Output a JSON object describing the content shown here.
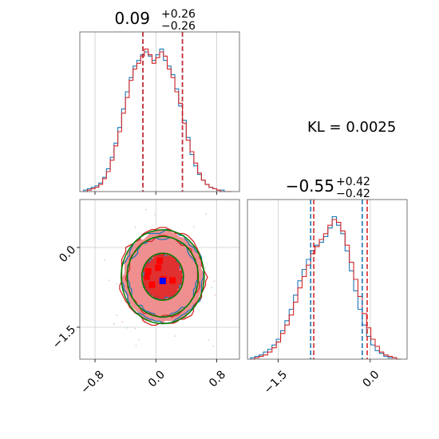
{
  "colors": {
    "blue": "#1f77b4",
    "red": "#d62728",
    "green": "#008000",
    "grid": "#cccccc",
    "spine": "#555555"
  },
  "annotation": {
    "kl_text": "KL = 0.0025"
  },
  "chart_data": [
    {
      "type": "histogram",
      "panel": "top-left",
      "title": {
        "value": "0.09",
        "plus": "+0.26",
        "minus": "−0.26"
      },
      "x_range": [
        -1.0,
        1.1
      ],
      "x_ticks": [
        -0.8,
        0.0,
        0.8
      ],
      "x_tick_labels": [
        "−0.8",
        "0.0",
        "0.8"
      ],
      "show_tick_labels": false,
      "grid": true,
      "series": [
        {
          "name": "",
          "color": "#1f77b4",
          "edges": [
            -0.95,
            -0.9,
            -0.85,
            -0.8,
            -0.75,
            -0.7,
            -0.65,
            -0.6,
            -0.55,
            -0.5,
            -0.45,
            -0.4,
            -0.35,
            -0.3,
            -0.25,
            -0.2,
            -0.15,
            -0.1,
            -0.05,
            0.0,
            0.05,
            0.1,
            0.15,
            0.2,
            0.25,
            0.3,
            0.35,
            0.4,
            0.45,
            0.5,
            0.55,
            0.6,
            0.65,
            0.7,
            0.75,
            0.8,
            0.85,
            0.9,
            0.95,
            1.0
          ],
          "counts": [
            1,
            2,
            3,
            4,
            6,
            10,
            16,
            24,
            34,
            45,
            58,
            70,
            80,
            88,
            92,
            96,
            98,
            95,
            92,
            96,
            100,
            92,
            88,
            82,
            72,
            60,
            50,
            38,
            26,
            18,
            12,
            8,
            5,
            3,
            2,
            1,
            1,
            0,
            0
          ],
          "quantile_lines": [
            -0.17,
            0.35
          ]
        },
        {
          "name": "",
          "color": "#d62728",
          "edges": [
            -0.95,
            -0.9,
            -0.85,
            -0.8,
            -0.75,
            -0.7,
            -0.65,
            -0.6,
            -0.55,
            -0.5,
            -0.45,
            -0.4,
            -0.35,
            -0.3,
            -0.25,
            -0.2,
            -0.15,
            -0.1,
            -0.05,
            0.0,
            0.05,
            0.1,
            0.15,
            0.2,
            0.25,
            0.3,
            0.35,
            0.4,
            0.45,
            0.5,
            0.55,
            0.6,
            0.65,
            0.7,
            0.75,
            0.8,
            0.85,
            0.9,
            0.95,
            1.0
          ],
          "counts": [
            0,
            1,
            2,
            3,
            5,
            9,
            14,
            22,
            32,
            42,
            55,
            66,
            78,
            86,
            90,
            95,
            100,
            96,
            90,
            94,
            98,
            95,
            86,
            80,
            70,
            62,
            48,
            36,
            28,
            20,
            13,
            8,
            5,
            3,
            2,
            1,
            0,
            0,
            0
          ],
          "quantile_lines": [
            -0.17,
            0.35
          ]
        }
      ]
    },
    {
      "type": "histogram",
      "panel": "bottom-right",
      "title": {
        "value": "−0.55",
        "plus": "+0.42",
        "minus": "−0.42"
      },
      "x_range": [
        -2.0,
        0.6
      ],
      "x_ticks": [
        -1.5,
        0.0
      ],
      "x_tick_labels": [
        "−1.5",
        "0.0"
      ],
      "show_tick_labels": true,
      "grid": true,
      "series": [
        {
          "name": "",
          "color": "#1f77b4",
          "edges": [
            -1.95,
            -1.88,
            -1.81,
            -1.74,
            -1.67,
            -1.6,
            -1.53,
            -1.46,
            -1.39,
            -1.32,
            -1.25,
            -1.18,
            -1.11,
            -1.04,
            -0.97,
            -0.9,
            -0.83,
            -0.76,
            -0.69,
            -0.62,
            -0.55,
            -0.48,
            -0.41,
            -0.34,
            -0.27,
            -0.2,
            -0.13,
            -0.06,
            0.01,
            0.08,
            0.15,
            0.22,
            0.29,
            0.36,
            0.43,
            0.5
          ],
          "counts": [
            1,
            2,
            3,
            5,
            7,
            10,
            14,
            20,
            27,
            35,
            45,
            55,
            63,
            70,
            76,
            80,
            82,
            86,
            92,
            100,
            94,
            88,
            76,
            62,
            48,
            35,
            24,
            16,
            10,
            6,
            4,
            2,
            1,
            1,
            0
          ],
          "quantile_lines": [
            -0.97,
            -0.13
          ]
        },
        {
          "name": "",
          "color": "#d62728",
          "edges": [
            -1.95,
            -1.88,
            -1.81,
            -1.74,
            -1.67,
            -1.6,
            -1.53,
            -1.46,
            -1.39,
            -1.32,
            -1.25,
            -1.18,
            -1.11,
            -1.04,
            -0.97,
            -0.9,
            -0.83,
            -0.76,
            -0.69,
            -0.62,
            -0.55,
            -0.48,
            -0.41,
            -0.34,
            -0.27,
            -0.2,
            -0.13,
            -0.06,
            0.01,
            0.08,
            0.15,
            0.22,
            0.29,
            0.36,
            0.43,
            0.5
          ],
          "counts": [
            0,
            1,
            2,
            3,
            5,
            8,
            12,
            18,
            24,
            31,
            40,
            50,
            58,
            66,
            74,
            79,
            84,
            88,
            94,
            98,
            96,
            90,
            80,
            68,
            56,
            44,
            32,
            22,
            14,
            9,
            5,
            3,
            2,
            1,
            0
          ],
          "quantile_lines": [
            -0.92,
            -0.05
          ]
        }
      ]
    },
    {
      "type": "contour",
      "panel": "bottom-left",
      "x_range": [
        -1.0,
        1.1
      ],
      "y_range": [
        -2.1,
        0.9
      ],
      "x_ticks": [
        -0.8,
        0.0,
        0.8
      ],
      "x_tick_labels": [
        "−0.8",
        "0.0",
        "0.8"
      ],
      "y_ticks": [
        0.0,
        -1.5
      ],
      "y_tick_labels": [
        "0.0",
        "−1.5"
      ],
      "grid": true,
      "center": [
        0.09,
        -0.55
      ],
      "sigma": [
        0.26,
        0.42
      ],
      "filled_levels": [
        {
          "level": "2-sigma",
          "color": "#ef8f8f"
        },
        {
          "level": "1-sigma",
          "color": "#e03030"
        }
      ],
      "blue_contours_sigma": [
        1.0,
        1.75,
        2.05
      ],
      "red_contours_sigma": [
        1.0,
        1.8,
        2.15
      ],
      "green_ellipses_sigma": [
        1.05,
        1.8,
        2.1
      ],
      "red_squares": [
        [
          0.05,
          -0.25
        ],
        [
          -0.1,
          -0.45
        ],
        [
          0.1,
          -0.6
        ],
        [
          -0.05,
          -0.7
        ],
        [
          0.22,
          -0.62
        ],
        [
          0.03,
          -0.38
        ],
        [
          -0.12,
          -0.55
        ]
      ],
      "blue_square": [
        0.09,
        -0.63
      ]
    }
  ]
}
